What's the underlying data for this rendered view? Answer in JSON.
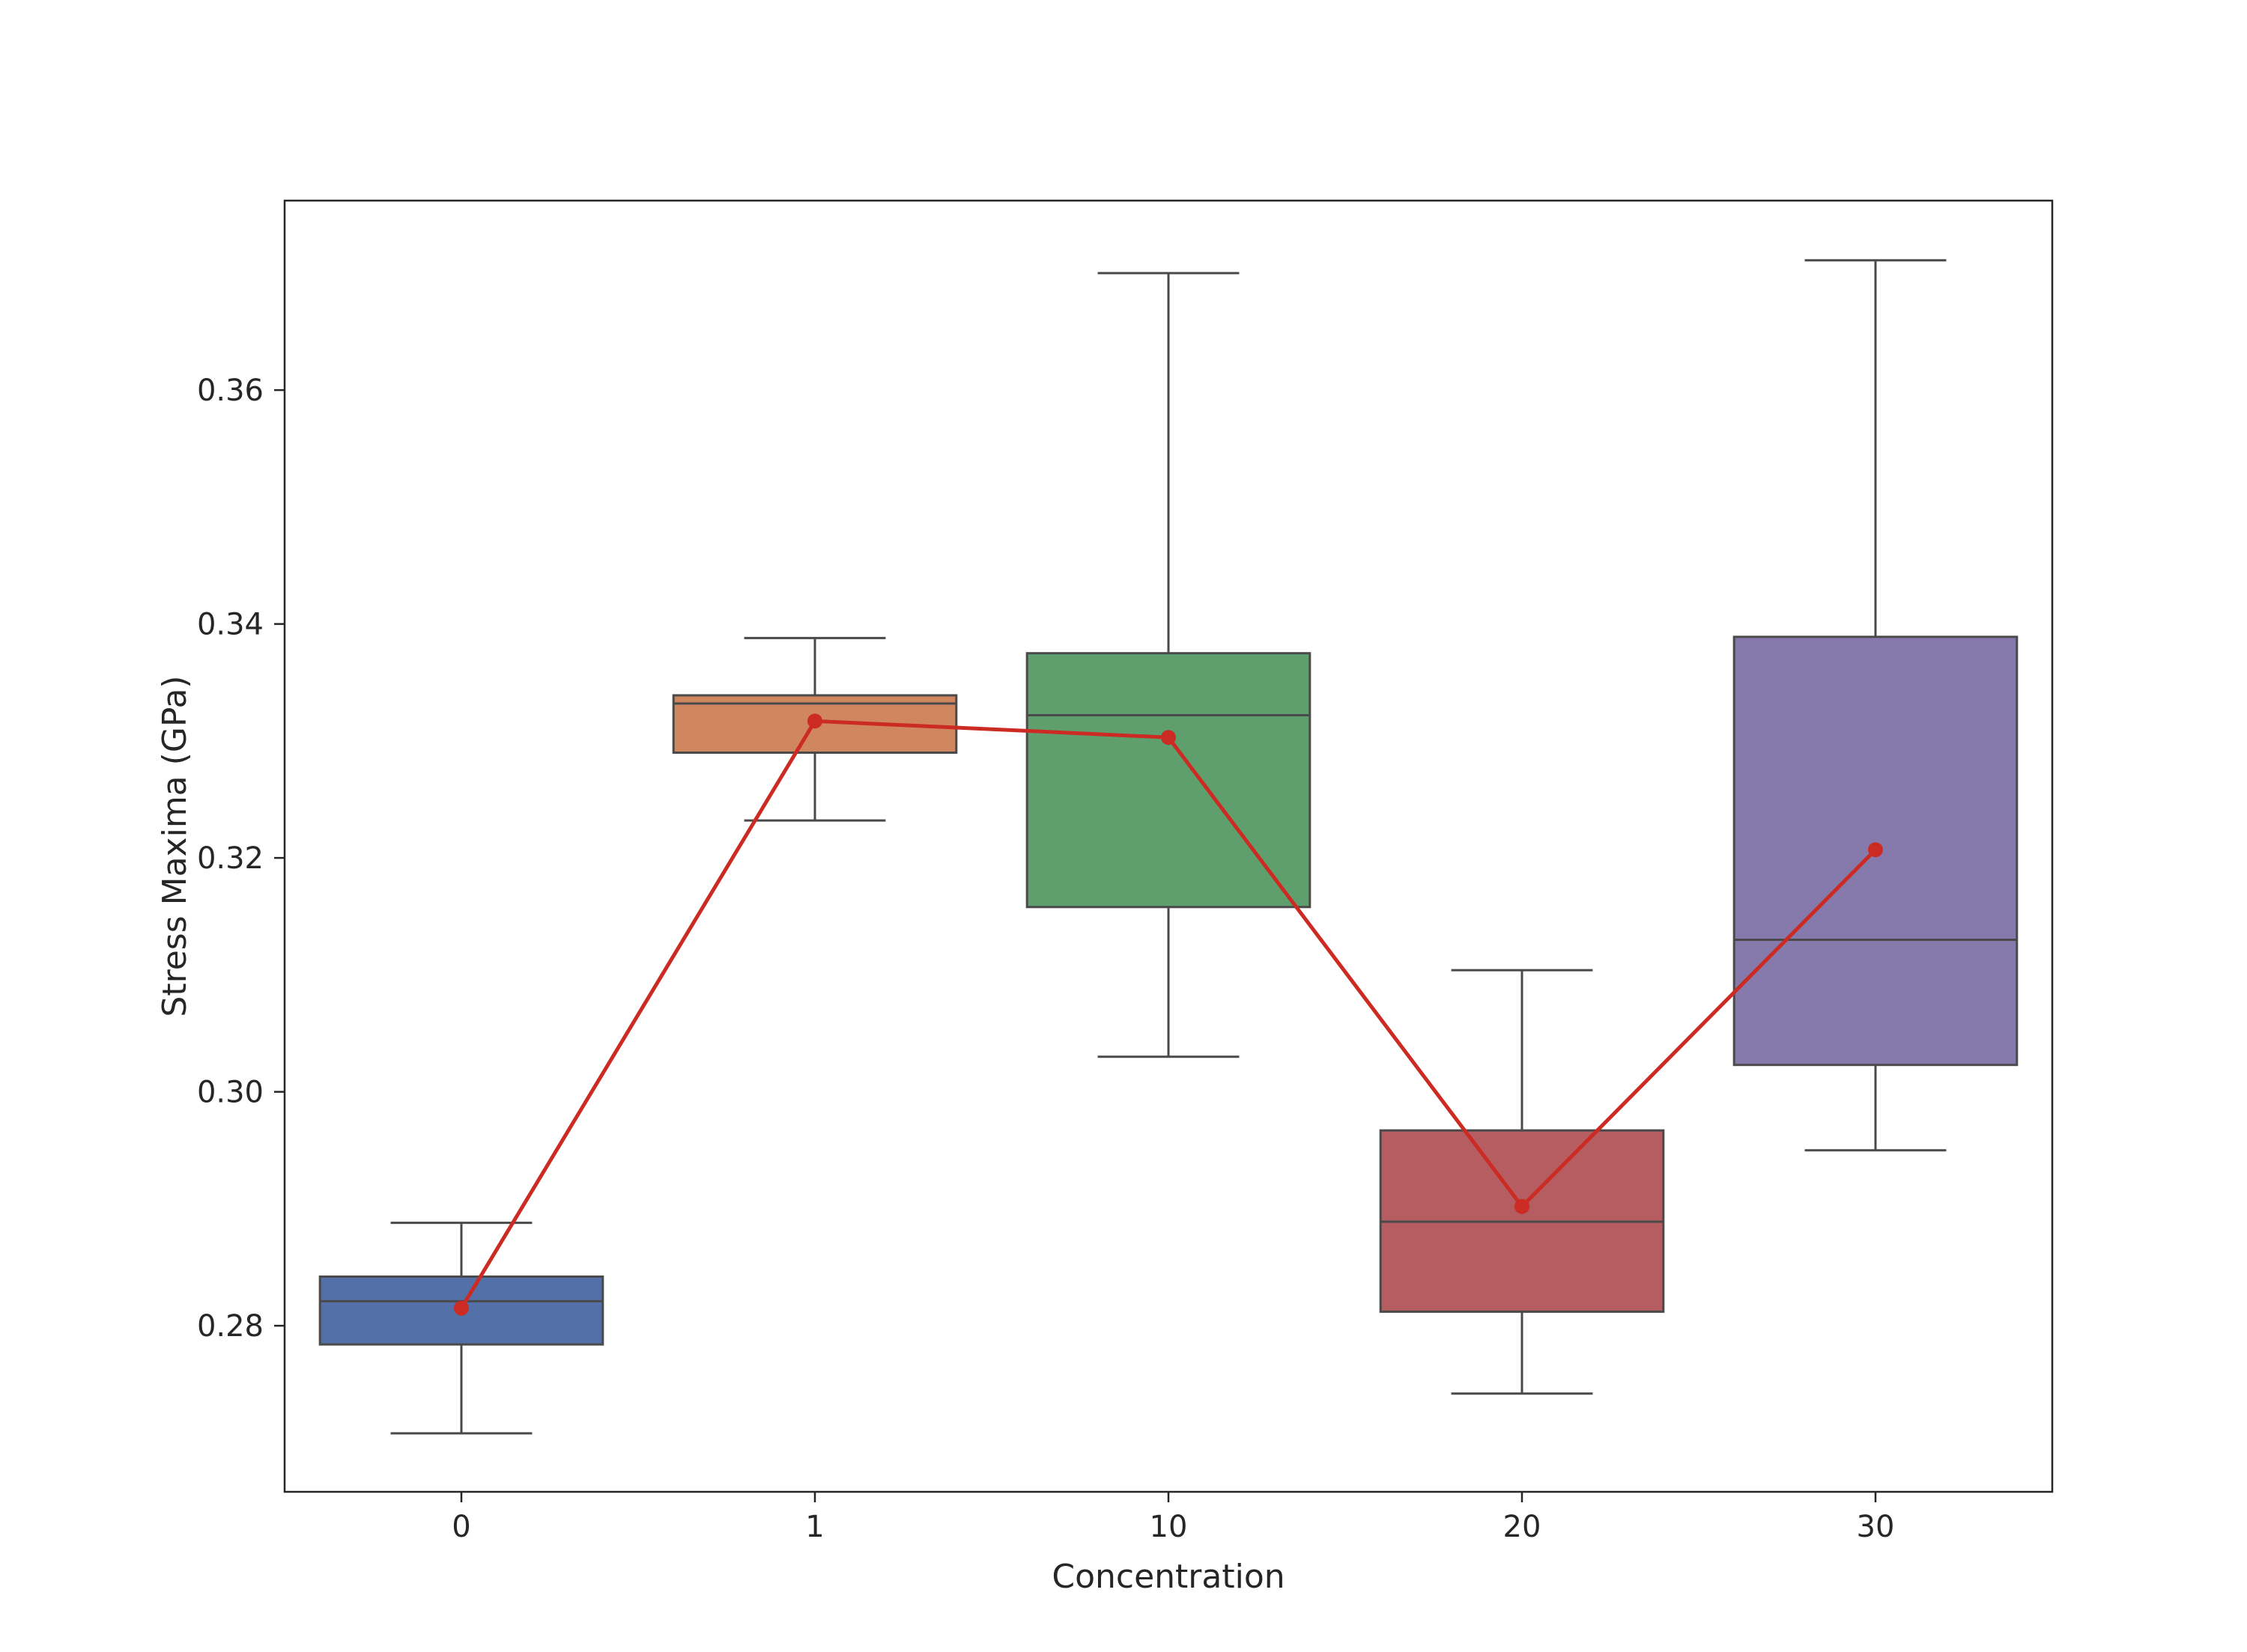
{
  "chart_data": {
    "type": "box",
    "title": "",
    "xlabel": "Concentration",
    "ylabel": "Stress Maxima (GPa)",
    "categories": [
      "0",
      "1",
      "10",
      "20",
      "30"
    ],
    "ylim": [
      0.2658,
      0.3762
    ],
    "y_ticks": [
      0.28,
      0.3,
      0.32,
      0.34,
      0.36
    ],
    "y_tick_labels": [
      "0.28",
      "0.30",
      "0.32",
      "0.34",
      "0.36"
    ],
    "grid": false,
    "legend": "none",
    "boxes": [
      {
        "category": "0",
        "whisker_low": 0.2708,
        "q1": 0.2784,
        "median": 0.2821,
        "q3": 0.2842,
        "whisker_high": 0.2888,
        "color": "#5470a8"
      },
      {
        "category": "1",
        "whisker_low": 0.3232,
        "q1": 0.329,
        "median": 0.3332,
        "q3": 0.3339,
        "whisker_high": 0.3388,
        "color": "#d0875f"
      },
      {
        "category": "10",
        "whisker_low": 0.303,
        "q1": 0.3158,
        "median": 0.3322,
        "q3": 0.3375,
        "whisker_high": 0.37,
        "color": "#5f9f6e"
      },
      {
        "category": "20",
        "whisker_low": 0.2742,
        "q1": 0.2812,
        "median": 0.2889,
        "q3": 0.2967,
        "whisker_high": 0.3104,
        "color": "#b55d60"
      },
      {
        "category": "30",
        "whisker_low": 0.295,
        "q1": 0.3023,
        "median": 0.313,
        "q3": 0.3389,
        "whisker_high": 0.3711,
        "color": "#857aab"
      }
    ],
    "series": [
      {
        "type": "line",
        "values": [
          0.2815,
          0.3317,
          0.3303,
          0.2902,
          0.3207
        ],
        "color": "#cc2b23"
      }
    ],
    "box_edge_color": "#4a4a4a",
    "axis_color": "#262626"
  }
}
